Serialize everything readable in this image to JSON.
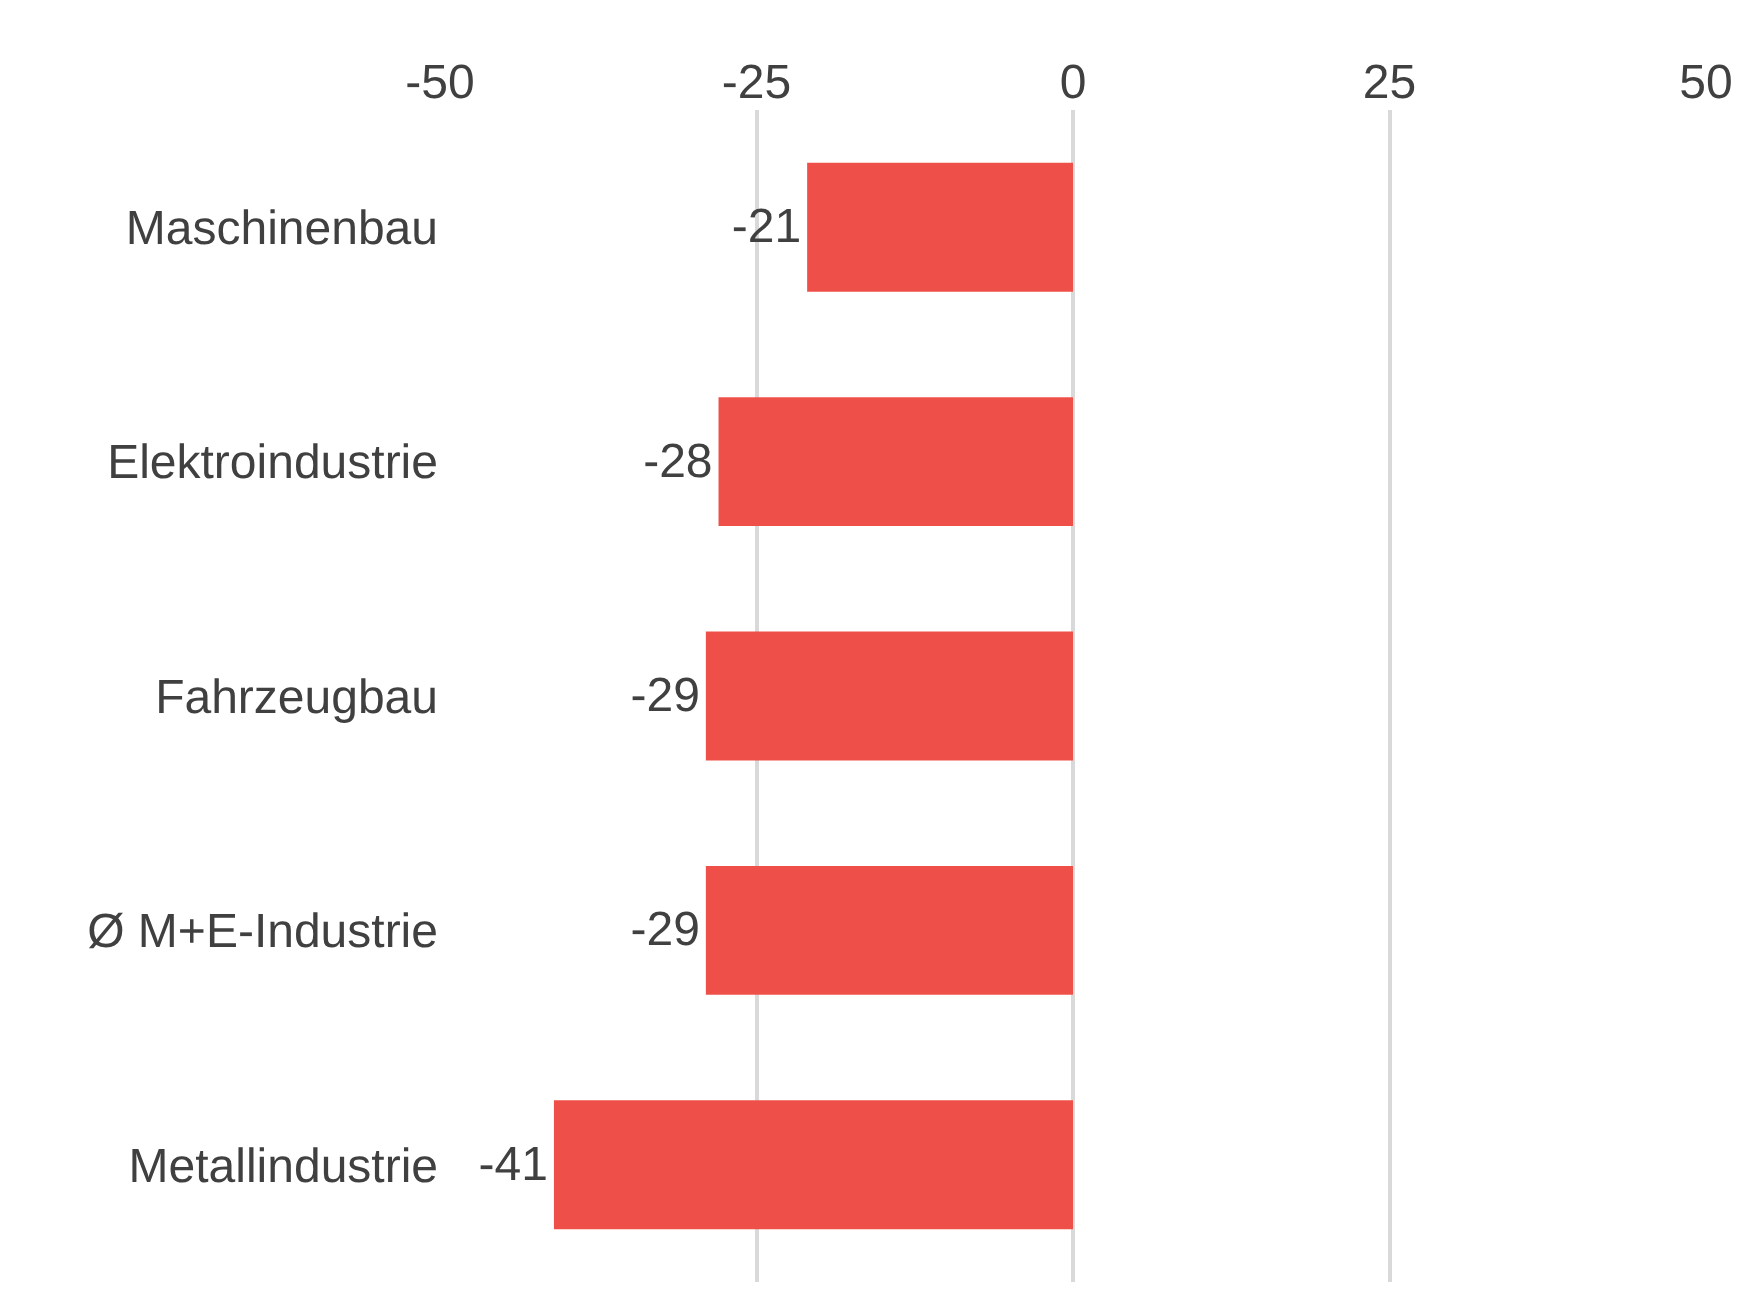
{
  "chart_data": {
    "type": "bar",
    "orientation": "horizontal",
    "categories": [
      "Maschinenbau",
      "Elektroindustrie",
      "Fahrzeugbau",
      "Ø M+E-Industrie",
      "Metallindustrie"
    ],
    "values": [
      -21,
      -28,
      -29,
      -29,
      -41
    ],
    "color": "#ee5049",
    "xlim": [
      -50,
      50
    ],
    "xticks": [
      -50,
      -25,
      0,
      25,
      50
    ],
    "grid": "x",
    "data_labels": true,
    "legend": false
  }
}
